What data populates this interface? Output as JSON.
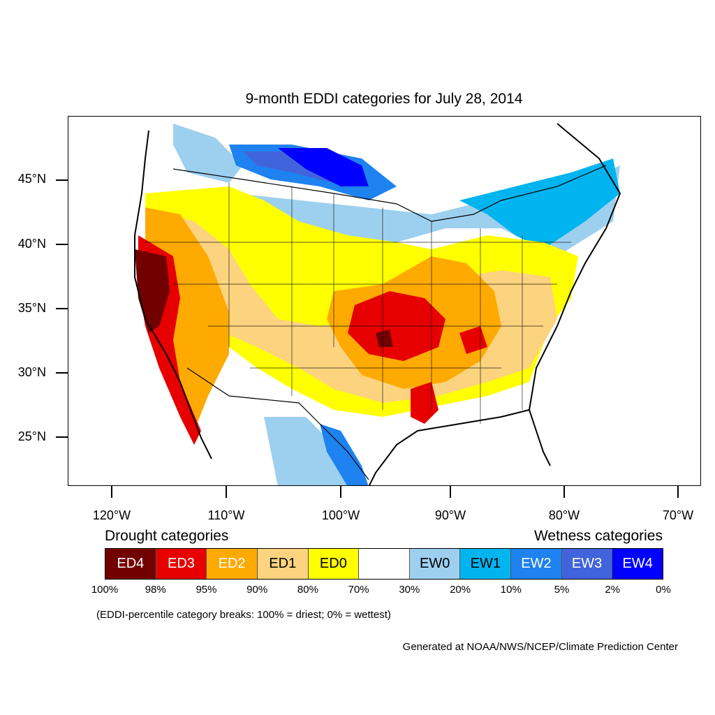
{
  "title": "9-month EDDI categories for July 28, 2014",
  "lat_labels": [
    "45°N",
    "40°N",
    "35°N",
    "30°N",
    "25°N"
  ],
  "lon_labels": [
    "120°W",
    "110°W",
    "100°W",
    "90°W",
    "80°W",
    "70°W"
  ],
  "legend": {
    "drought_title": "Drought categories",
    "wetness_title": "Wetness categories",
    "categories": [
      {
        "label": "ED4",
        "color": "#730000",
        "text_color": "#ffffff"
      },
      {
        "label": "ED3",
        "color": "#e60000",
        "text_color": "#ffffff"
      },
      {
        "label": "ED2",
        "color": "#ffaa00",
        "text_color": "#ffffff"
      },
      {
        "label": "ED1",
        "color": "#fcd37f",
        "text_color": "#000000"
      },
      {
        "label": "ED0",
        "color": "#ffff00",
        "text_color": "#000000"
      },
      {
        "label": "",
        "color": "#ffffff",
        "text_color": "#000000"
      },
      {
        "label": "EW0",
        "color": "#9dd0ef",
        "text_color": "#000000"
      },
      {
        "label": "EW1",
        "color": "#00b4f0",
        "text_color": "#000000"
      },
      {
        "label": "EW2",
        "color": "#1e82f0",
        "text_color": "#ffffff"
      },
      {
        "label": "EW3",
        "color": "#4164dc",
        "text_color": "#ffffff"
      },
      {
        "label": "EW4",
        "color": "#0000ff",
        "text_color": "#ffffff"
      }
    ],
    "percentiles": [
      "100%",
      "98%",
      "95%",
      "90%",
      "80%",
      "70%",
      "30%",
      "20%",
      "10%",
      "5%",
      "2%",
      "0%"
    ]
  },
  "note": "(EDDI-percentile category breaks: 100% = driest; 0% = wettest)",
  "credit": "Generated at NOAA/NWS/NCEP/Climate Prediction Center"
}
